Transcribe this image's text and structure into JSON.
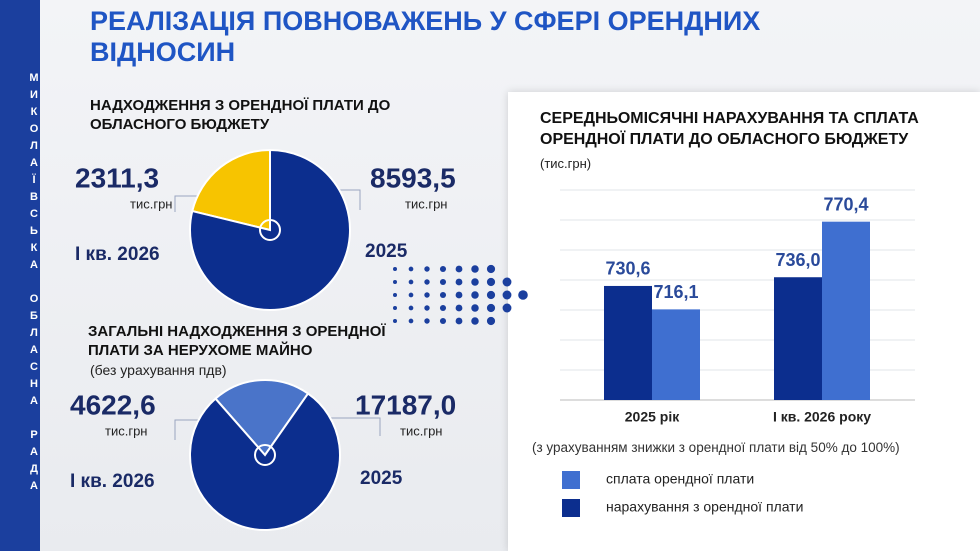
{
  "header": {
    "title": "РЕАЛІЗАЦІЯ ПОВНОВАЖЕНЬ У СФЕРІ ОРЕНДНИХ ВІДНОСИН",
    "sidebar": "МИКОЛАЇВСЬКА ОБЛАСНА РАДА"
  },
  "chart_data": [
    {
      "type": "pie",
      "title": "НАДХОДЖЕННЯ З ОРЕНДНОЇ ПЛАТИ ДО ОБЛАСНОГО БЮДЖЕТУ",
      "unit": "тис.грн",
      "categories": [
        "I кв. 2026",
        "2025"
      ],
      "values": [
        2311.3,
        8593.5
      ],
      "value_labels": [
        "2311,3",
        "8593,5"
      ],
      "colors": [
        "#f7c400",
        "#0c2e8e"
      ]
    },
    {
      "type": "pie",
      "title": "ЗАГАЛЬНІ НАДХОДЖЕННЯ З ОРЕНДНОЇ ПЛАТИ ЗА НЕРУХОМЕ МАЙНО",
      "subtitle": "(без урахування пдв)",
      "unit": "тис.грн",
      "categories": [
        "I кв. 2026",
        "2025"
      ],
      "values": [
        4622.6,
        17187.0
      ],
      "value_labels": [
        "4622,6",
        "17187,0"
      ],
      "colors": [
        "#4a74c9",
        "#0c2e8e"
      ]
    },
    {
      "type": "bar",
      "title": "СЕРЕДНЬОМІСЯЧНІ НАРАХУВАННЯ ТА СПЛАТА ОРЕНДНОЇ ПЛАТИ ДО ОБЛАСНОГО БЮДЖЕТУ",
      "y_label": "(тис.грн)",
      "note": "(з урахуванням знижки з орендної плати від 50% до 100%)",
      "categories": [
        "2025 рік",
        "I кв. 2026 року"
      ],
      "ylim": [
        660,
        790
      ],
      "series": [
        {
          "name": "сплата орендної плати",
          "color": "#3f6fd0",
          "values": [
            716.1,
            770.4
          ],
          "value_labels": [
            "716,1",
            "770,4"
          ]
        },
        {
          "name": "нарахування з орендної плати",
          "color": "#0c2e8e",
          "values": [
            730.6,
            736.0
          ],
          "value_labels": [
            "730,6",
            "736,0"
          ]
        }
      ]
    }
  ]
}
